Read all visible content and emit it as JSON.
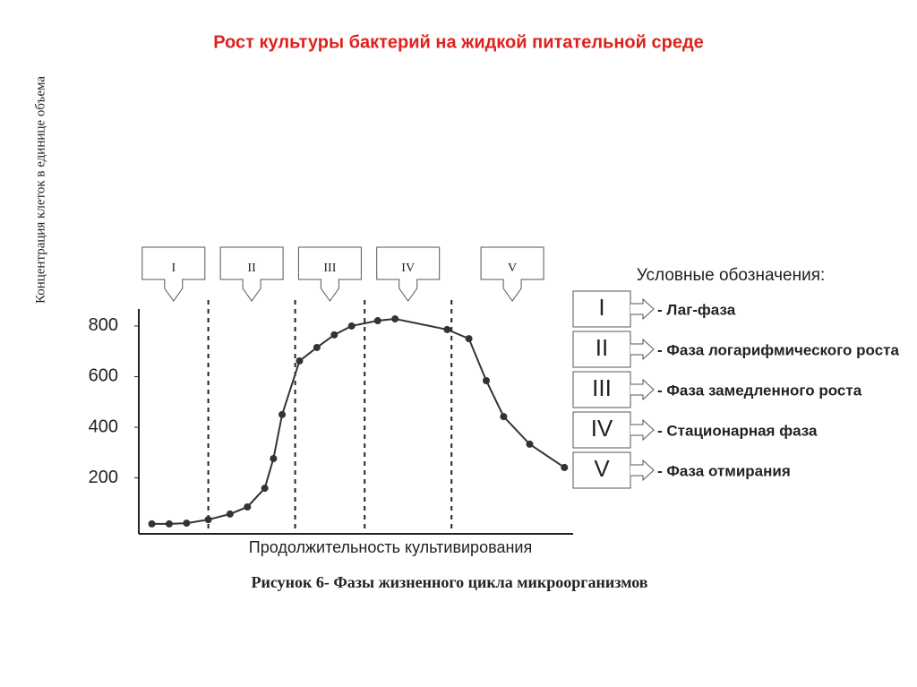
{
  "chart_data": {
    "type": "line",
    "title": "Рост культуры бактерий на жидкой питательной среде",
    "y_label": "Концентрация клеток в единице объема",
    "x_label": "Продолжительность культивирования",
    "caption": "Рисунок 6- Фазы жизненного цикла микроорганизмов",
    "x": [
      3,
      7,
      11,
      16,
      21,
      25,
      29,
      31,
      33,
      37,
      41,
      45,
      49,
      55,
      59,
      71,
      76,
      80,
      84,
      90,
      98
    ],
    "series": [
      {
        "color": "#333333",
        "values": [
          18,
          18,
          21,
          35,
          57,
          85,
          159,
          276,
          450,
          662,
          715,
          765,
          800,
          821,
          828,
          786,
          750,
          584,
          442,
          333,
          241
        ]
      }
    ],
    "xlim": [
      0,
      100
    ],
    "ylim": [
      0,
      860
    ],
    "yticks": [
      200,
      400,
      600,
      800
    ],
    "phase_dividers": [
      16,
      36,
      52,
      72
    ],
    "phases": [
      "I",
      "II",
      "III",
      "IV",
      "V"
    ],
    "legend_title": "Условные обозначения:",
    "legend": [
      {
        "symbol": "I",
        "text": "- Лаг-фаза"
      },
      {
        "symbol": "II",
        "text": "- Фаза логарифмического роста"
      },
      {
        "symbol": "III",
        "text": "- Фаза замедленного роста"
      },
      {
        "symbol": "IV",
        "text": "- Стационарная фаза"
      },
      {
        "symbol": "V",
        "text": "- Фаза отмирания"
      }
    ]
  }
}
